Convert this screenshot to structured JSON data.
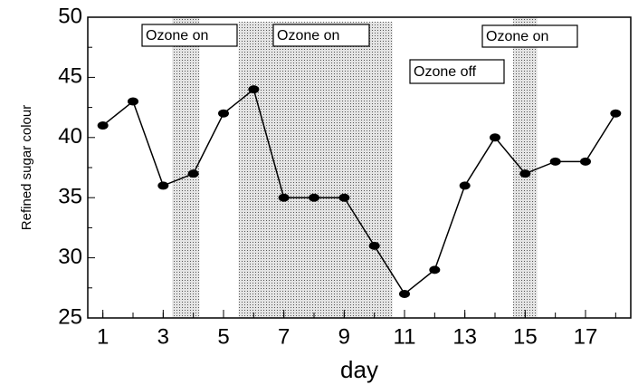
{
  "chart_data": {
    "type": "line",
    "x_label": "day",
    "y_label": "Refined sugar colour",
    "x": [
      1,
      2,
      3,
      4,
      5,
      6,
      7,
      8,
      9,
      10,
      11,
      12,
      13,
      14,
      15,
      16,
      17,
      18
    ],
    "series": [
      {
        "name": "Refined sugar colour",
        "color": "#000000",
        "values": [
          41,
          43,
          36,
          37,
          42,
          44,
          35,
          35,
          35,
          31,
          27,
          29,
          36,
          40,
          37,
          38,
          38,
          42
        ]
      }
    ],
    "xlim": [
      0.5,
      18.5
    ],
    "xticks": [
      1,
      3,
      5,
      7,
      9,
      11,
      13,
      15,
      17
    ],
    "ylim": [
      25,
      50
    ],
    "yticks": [
      25,
      30,
      35,
      40,
      45,
      50
    ],
    "ozone_on_spans": [
      [
        3.3,
        4.2
      ],
      [
        5.5,
        10.6
      ],
      [
        14.6,
        15.4
      ]
    ],
    "annotations": [
      "Ozone on",
      "Ozone on",
      "Ozone off",
      "Ozone on"
    ]
  }
}
